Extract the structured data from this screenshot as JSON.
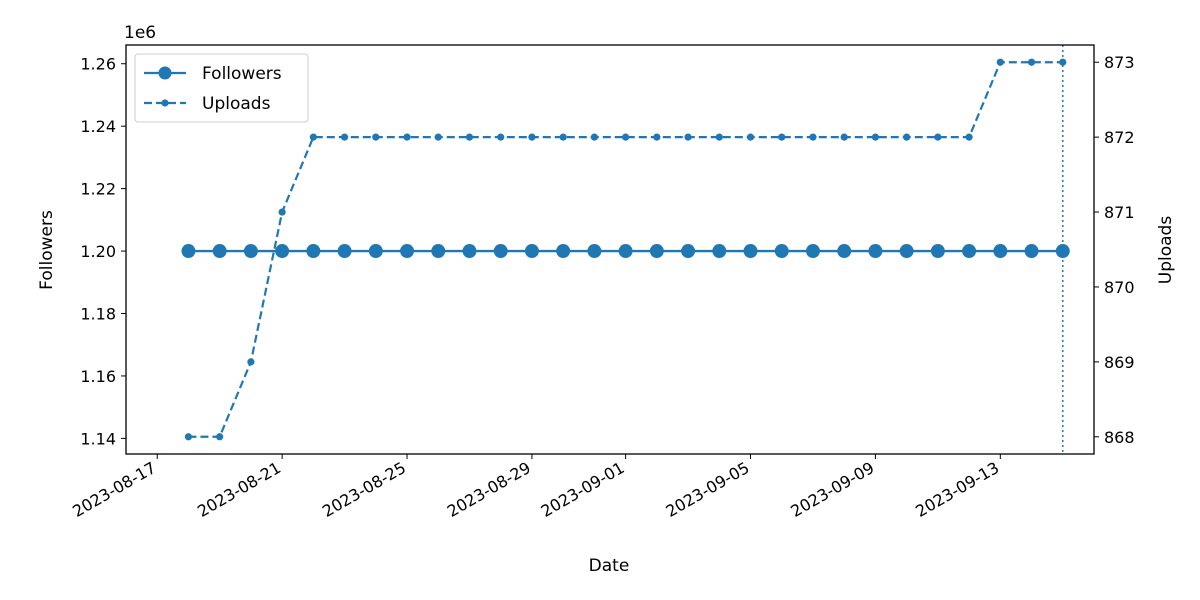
{
  "chart_data": {
    "type": "line",
    "xlabel": "Date",
    "ylabel_left": "Followers",
    "ylabel_right": "Uploads",
    "left_offset_label": "1e6",
    "left_ylim": [
      1.135,
      1.266
    ],
    "right_ylim": [
      867.77,
      873.23
    ],
    "left_yticks": [
      "1.14",
      "1.16",
      "1.18",
      "1.20",
      "1.22",
      "1.24",
      "1.26"
    ],
    "right_yticks": [
      "868",
      "869",
      "870",
      "871",
      "872",
      "873"
    ],
    "xlim": [
      "2023-08-16",
      "2023-09-16"
    ],
    "xticks": [
      "2023-08-17",
      "2023-08-21",
      "2023-08-25",
      "2023-08-29",
      "2023-09-01",
      "2023-09-05",
      "2023-09-09",
      "2023-09-13"
    ],
    "x": [
      "2023-08-18",
      "2023-08-19",
      "2023-08-20",
      "2023-08-21",
      "2023-08-22",
      "2023-08-23",
      "2023-08-24",
      "2023-08-25",
      "2023-08-26",
      "2023-08-27",
      "2023-08-28",
      "2023-08-29",
      "2023-08-30",
      "2023-08-31",
      "2023-09-01",
      "2023-09-02",
      "2023-09-03",
      "2023-09-04",
      "2023-09-05",
      "2023-09-06",
      "2023-09-07",
      "2023-09-08",
      "2023-09-09",
      "2023-09-10",
      "2023-09-11",
      "2023-09-12",
      "2023-09-13",
      "2023-09-14",
      "2023-09-15"
    ],
    "series": [
      {
        "name": "Followers",
        "axis": "left",
        "style": "solid",
        "values": [
          1200000,
          1200000,
          1200000,
          1200000,
          1200000,
          1200000,
          1200000,
          1200000,
          1200000,
          1200000,
          1200000,
          1200000,
          1200000,
          1200000,
          1200000,
          1200000,
          1200000,
          1200000,
          1200000,
          1200000,
          1200000,
          1200000,
          1200000,
          1200000,
          1200000,
          1200000,
          1200000,
          1200000,
          1200000
        ]
      },
      {
        "name": "Uploads",
        "axis": "right",
        "style": "dashed",
        "values": [
          868,
          868,
          869,
          871,
          872,
          872,
          872,
          872,
          872,
          872,
          872,
          872,
          872,
          872,
          872,
          872,
          872,
          872,
          872,
          872,
          872,
          872,
          872,
          872,
          872,
          872,
          873,
          873,
          873
        ]
      }
    ],
    "vline": "2023-09-15",
    "legend_position": "upper-left",
    "grid": false,
    "color": "#1f77b4"
  }
}
